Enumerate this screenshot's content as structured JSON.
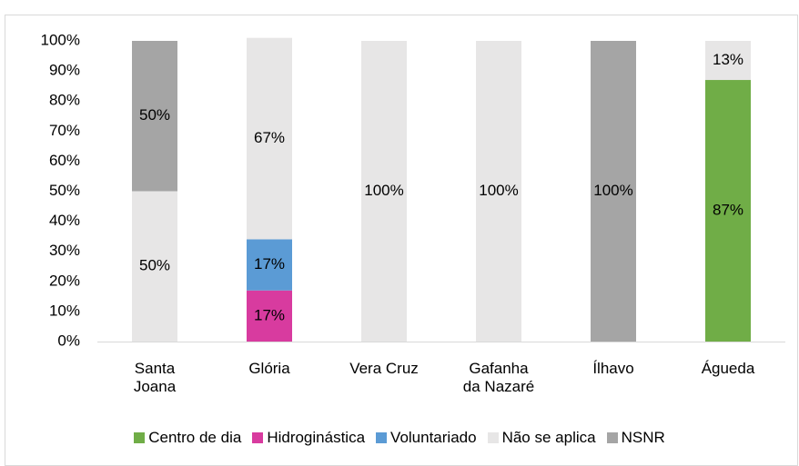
{
  "chart_data": {
    "type": "stacked_bar",
    "categories": [
      "Santa Joana",
      "Glória",
      "Vera Cruz",
      "Gafanha da Nazaré",
      "Ílhavo",
      "Águeda"
    ],
    "series": [
      {
        "name": "Centro de dia",
        "color": "#70ad47",
        "values": [
          0,
          0,
          0,
          0,
          0,
          87
        ],
        "value_labels": [
          null,
          null,
          null,
          null,
          null,
          "87%"
        ]
      },
      {
        "name": "Hidroginástica",
        "color": "#d83b9f",
        "values": [
          0,
          17,
          0,
          0,
          0,
          0
        ],
        "value_labels": [
          null,
          "17%",
          null,
          null,
          null,
          null
        ]
      },
      {
        "name": "Voluntariado",
        "color": "#5b9bd5",
        "values": [
          0,
          17,
          0,
          0,
          0,
          0
        ],
        "value_labels": [
          null,
          "17%",
          null,
          null,
          null,
          null
        ]
      },
      {
        "name": "Não se aplica",
        "color": "#e7e6e6",
        "values": [
          50,
          67,
          100,
          100,
          0,
          13
        ],
        "value_labels": [
          "50%",
          "67%",
          "100%",
          "100%",
          null,
          "13%"
        ]
      },
      {
        "name": "NSNR",
        "color": "#a5a5a5",
        "values": [
          50,
          0,
          0,
          0,
          100,
          0
        ],
        "value_labels": [
          "50%",
          null,
          null,
          null,
          "100%",
          null
        ]
      }
    ],
    "ylim": [
      0,
      100
    ],
    "yticks": [
      {
        "value": 0,
        "label": "0%"
      },
      {
        "value": 10,
        "label": "10%"
      },
      {
        "value": 20,
        "label": "20%"
      },
      {
        "value": 30,
        "label": "30%"
      },
      {
        "value": 40,
        "label": "40%"
      },
      {
        "value": 50,
        "label": "50%"
      },
      {
        "value": 60,
        "label": "60%"
      },
      {
        "value": 70,
        "label": "70%"
      },
      {
        "value": 80,
        "label": "80%"
      },
      {
        "value": 90,
        "label": "90%"
      },
      {
        "value": 100,
        "label": "100%"
      }
    ],
    "grid": false,
    "legend": "bottom"
  }
}
